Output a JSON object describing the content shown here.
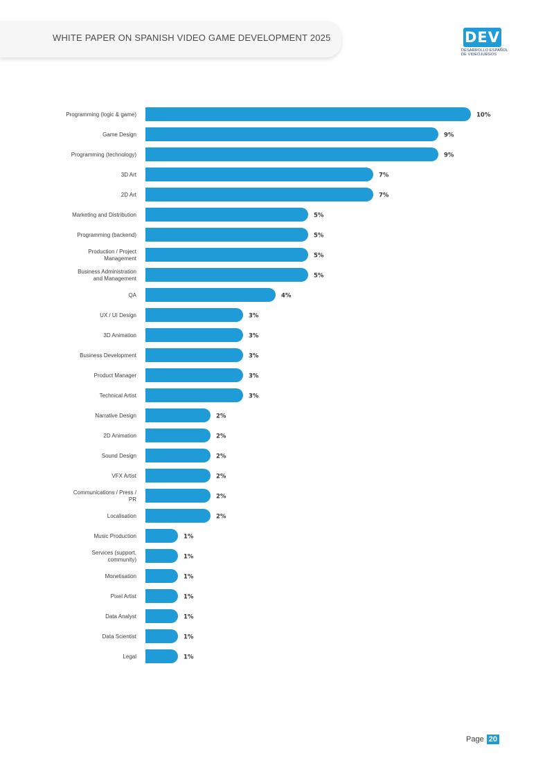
{
  "header": {
    "title": "WHITE PAPER ON SPANISH VIDEO GAME DEVELOPMENT 2025"
  },
  "logo": {
    "mark": "DEV",
    "line1": "DESARROLLO ESPAÑOL",
    "line2": "DE VIDEOJUEGOS",
    "color": "#1f9bd7"
  },
  "footer": {
    "page_label": "Page",
    "page_number": "20"
  },
  "chart_data": {
    "type": "bar",
    "orientation": "horizontal",
    "bar_color": "#1f9bd7",
    "categories": [
      "Programming (logic & game)",
      "Game Design",
      "Programming (technology)",
      "3D Art",
      "2D Art",
      "Marketing and Distribution",
      "Programming (backend)",
      "Production / Project Management",
      "Business Administration and Management",
      "QA",
      "UX / UI Design",
      "3D Animation",
      "Business Development",
      "Product Manager",
      "Technical Artist",
      "Narrative Design",
      "2D Animation",
      "Sound Design",
      "VFX Artist",
      "Communications / Press / PR",
      "Localisation",
      "Music Production",
      "Services (support, community)",
      "Monetisation",
      "Pixel Artist",
      "Data Analyst",
      "Data Scientist",
      "Legal"
    ],
    "values": [
      10,
      9,
      9,
      7,
      7,
      5,
      5,
      5,
      5,
      4,
      3,
      3,
      3,
      3,
      3,
      2,
      2,
      2,
      2,
      2,
      2,
      1,
      1,
      1,
      1,
      1,
      1,
      1
    ],
    "value_labels": [
      "10%",
      "9%",
      "9%",
      "7%",
      "7%",
      "5%",
      "5%",
      "5%",
      "5%",
      "4%",
      "3%",
      "3%",
      "3%",
      "3%",
      "3%",
      "2%",
      "2%",
      "2%",
      "2%",
      "2%",
      "2%",
      "1%",
      "1%",
      "1%",
      "1%",
      "1%",
      "1%",
      "1%"
    ],
    "xlim": [
      0,
      10
    ]
  }
}
